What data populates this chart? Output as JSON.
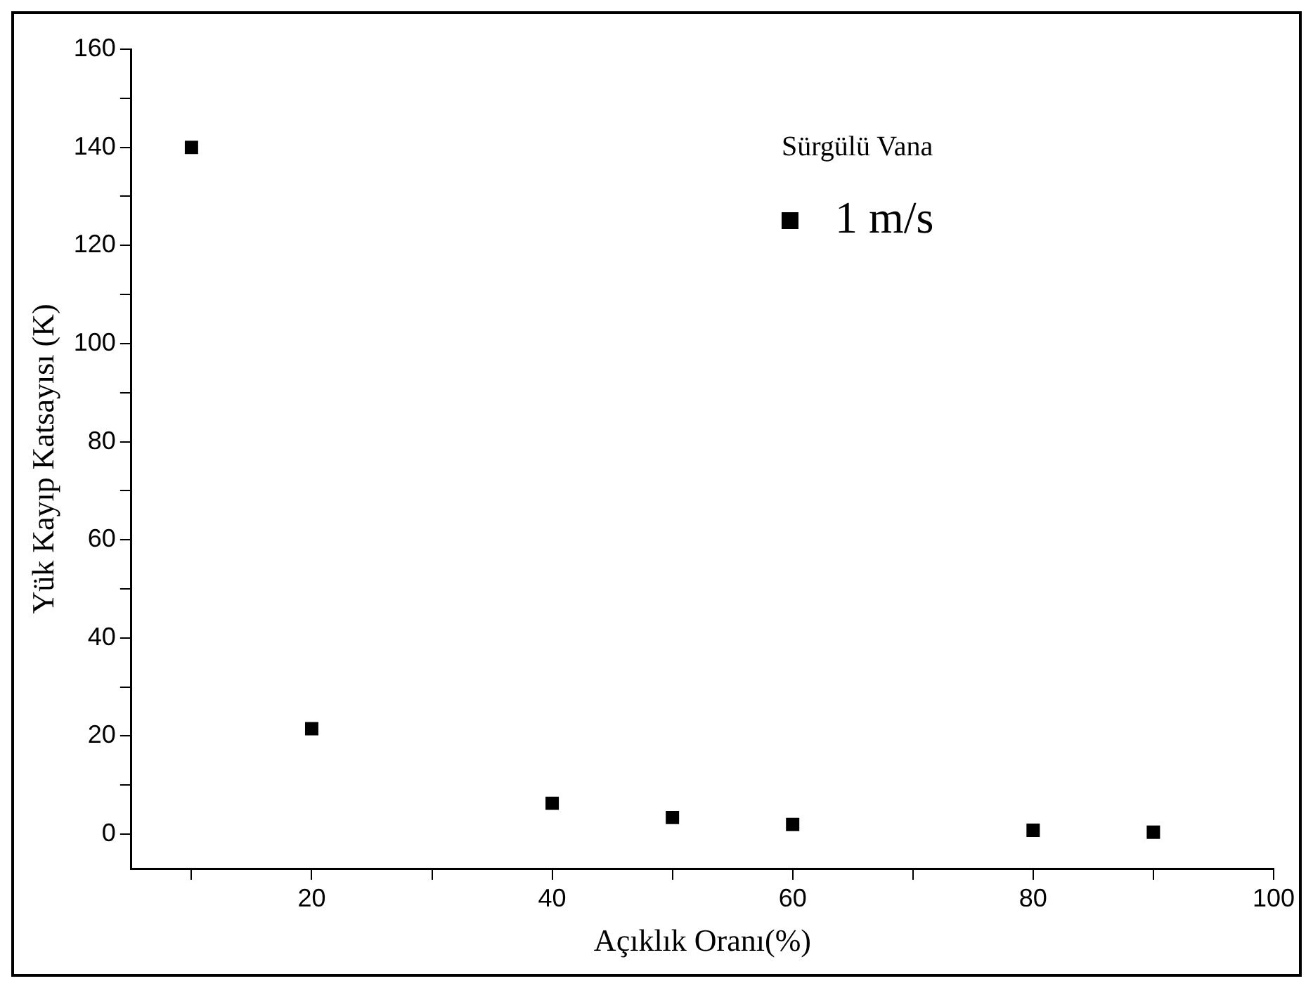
{
  "chart_data": {
    "type": "scatter",
    "xlabel": "Açıklık Oranı(%)",
    "ylabel": "Yük Kayıp Katsayısı (K)",
    "legend_title": "Sürgülü Vana",
    "series": [
      {
        "name": "1 m/s",
        "color": "#000000",
        "x": [
          10,
          20,
          40,
          50,
          60,
          80,
          90
        ],
        "values": [
          140,
          21.5,
          6.3,
          3.4,
          2,
          0.8,
          0.4
        ]
      }
    ],
    "xlim": [
      5,
      100
    ],
    "xticks": [
      {
        "value": 10,
        "label": null
      },
      20,
      {
        "value": 30,
        "label": null
      },
      40,
      {
        "value": 50,
        "label": null
      },
      60,
      {
        "value": 70,
        "label": null
      },
      80,
      {
        "value": 90,
        "label": null
      },
      100
    ],
    "ylim": [
      -7,
      160
    ],
    "yticks": [
      0,
      {
        "value": 10,
        "label": null
      },
      20,
      {
        "value": 30,
        "label": null
      },
      40,
      {
        "value": 50,
        "label": null
      },
      60,
      {
        "value": 70,
        "label": null
      },
      80,
      {
        "value": 90,
        "label": null
      },
      100,
      {
        "value": 110,
        "label": null
      },
      120,
      {
        "value": 130,
        "label": null
      },
      140,
      {
        "value": 150,
        "label": null
      },
      160
    ],
    "marker": "square",
    "legend": "top right",
    "grid": false
  }
}
